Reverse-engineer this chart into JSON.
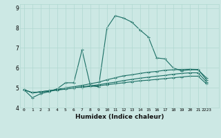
{
  "xlabel": "Humidex (Indice chaleur)",
  "ylabel": "",
  "background_color": "#cce8e4",
  "line_color": "#1a6e64",
  "grid_color": "#b0d8d0",
  "xlim": [
    -0.5,
    23.5
  ],
  "ylim": [
    4,
    9.2
  ],
  "yticks": [
    4,
    5,
    6,
    7,
    8,
    9
  ],
  "xtick_labels": [
    "0",
    "1",
    "2",
    "3",
    "4",
    "5",
    "6",
    "7",
    "8",
    "9",
    "10",
    "11",
    "12",
    "13",
    "14",
    "15",
    "16",
    "17",
    "18",
    "19",
    "20",
    "21",
    "2223"
  ],
  "xticks": [
    0,
    1,
    2,
    3,
    4,
    5,
    6,
    7,
    8,
    9,
    10,
    11,
    12,
    13,
    14,
    15,
    16,
    17,
    18,
    19,
    20,
    21,
    22
  ],
  "lines": [
    {
      "x": [
        0,
        1,
        2,
        3,
        4,
        5,
        6,
        7,
        8,
        9,
        10,
        11,
        12,
        13,
        14,
        15,
        16,
        17,
        18,
        19,
        20,
        21,
        22
      ],
      "y": [
        4.9,
        4.5,
        4.7,
        4.8,
        4.95,
        5.25,
        5.25,
        6.9,
        5.1,
        5.05,
        8.0,
        8.62,
        8.5,
        8.3,
        7.9,
        7.55,
        6.5,
        6.45,
        6.0,
        5.85,
        5.9,
        5.9,
        5.5
      ]
    },
    {
      "x": [
        0,
        1,
        2,
        3,
        4,
        5,
        6,
        7,
        8,
        9,
        10,
        11,
        12,
        13,
        14,
        15,
        16,
        17,
        18,
        19,
        20,
        21,
        22
      ],
      "y": [
        4.9,
        4.75,
        4.8,
        4.85,
        4.92,
        5.0,
        5.05,
        5.12,
        5.2,
        5.28,
        5.4,
        5.5,
        5.6,
        5.65,
        5.72,
        5.78,
        5.82,
        5.88,
        5.9,
        5.92,
        5.93,
        5.92,
        5.4
      ]
    },
    {
      "x": [
        0,
        1,
        2,
        3,
        4,
        5,
        6,
        7,
        8,
        9,
        10,
        11,
        12,
        13,
        14,
        15,
        16,
        17,
        18,
        19,
        20,
        21,
        22
      ],
      "y": [
        4.9,
        4.75,
        4.8,
        4.85,
        4.9,
        4.95,
        5.0,
        5.05,
        5.1,
        5.15,
        5.22,
        5.28,
        5.36,
        5.42,
        5.48,
        5.53,
        5.58,
        5.62,
        5.68,
        5.72,
        5.75,
        5.75,
        5.3
      ]
    },
    {
      "x": [
        0,
        1,
        2,
        3,
        4,
        5,
        6,
        7,
        8,
        9,
        10,
        11,
        12,
        13,
        14,
        15,
        16,
        17,
        18,
        19,
        20,
        21,
        22
      ],
      "y": [
        4.9,
        4.75,
        4.78,
        4.82,
        4.88,
        4.93,
        4.98,
        5.02,
        5.07,
        5.1,
        5.15,
        5.2,
        5.25,
        5.3,
        5.35,
        5.38,
        5.42,
        5.46,
        5.5,
        5.54,
        5.58,
        5.58,
        5.2
      ]
    }
  ]
}
